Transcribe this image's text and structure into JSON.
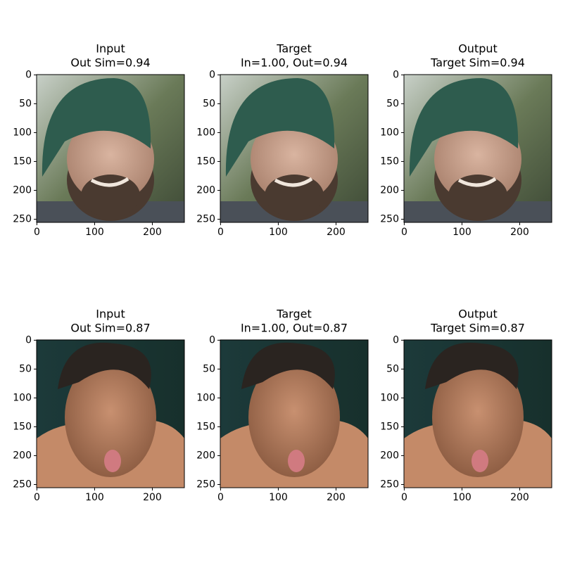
{
  "panels": [
    {
      "title": [
        "Input",
        "Out Sim=0.94"
      ],
      "xlim": [
        -0.5,
        255.5
      ],
      "ylim": [
        -0.5,
        255.5
      ],
      "xticks": [
        0,
        100,
        200
      ],
      "yticks": [
        0,
        50,
        100,
        150,
        200,
        250
      ]
    },
    {
      "title": [
        "Target",
        "In=1.00, Out=0.94"
      ],
      "xlim": [
        -0.5,
        255.5
      ],
      "ylim": [
        -0.5,
        255.5
      ],
      "xticks": [
        0,
        100,
        200
      ],
      "yticks": [
        0,
        50,
        100,
        150,
        200,
        250
      ]
    },
    {
      "title": [
        "Output",
        "Target Sim=0.94"
      ],
      "xlim": [
        -0.5,
        255.5
      ],
      "ylim": [
        -0.5,
        255.5
      ],
      "xticks": [
        0,
        100,
        200
      ],
      "yticks": [
        0,
        50,
        100,
        150,
        200,
        250
      ]
    },
    {
      "title": [
        "Input",
        "Out Sim=0.87"
      ],
      "xlim": [
        -0.5,
        255.5
      ],
      "ylim": [
        -0.5,
        255.5
      ],
      "xticks": [
        0,
        100,
        200
      ],
      "yticks": [
        0,
        50,
        100,
        150,
        200,
        250
      ]
    },
    {
      "title": [
        "Target",
        "In=1.00, Out=0.87"
      ],
      "xlim": [
        -0.5,
        255.5
      ],
      "ylim": [
        -0.5,
        255.5
      ],
      "xticks": [
        0,
        100,
        200
      ],
      "yticks": [
        0,
        50,
        100,
        150,
        200,
        250
      ]
    },
    {
      "title": [
        "Output",
        "Target Sim=0.87"
      ],
      "xlim": [
        -0.5,
        255.5
      ],
      "ylim": [
        -0.5,
        255.5
      ],
      "xticks": [
        0,
        100,
        200
      ],
      "yticks": [
        0,
        50,
        100,
        150,
        200,
        250
      ]
    }
  ]
}
